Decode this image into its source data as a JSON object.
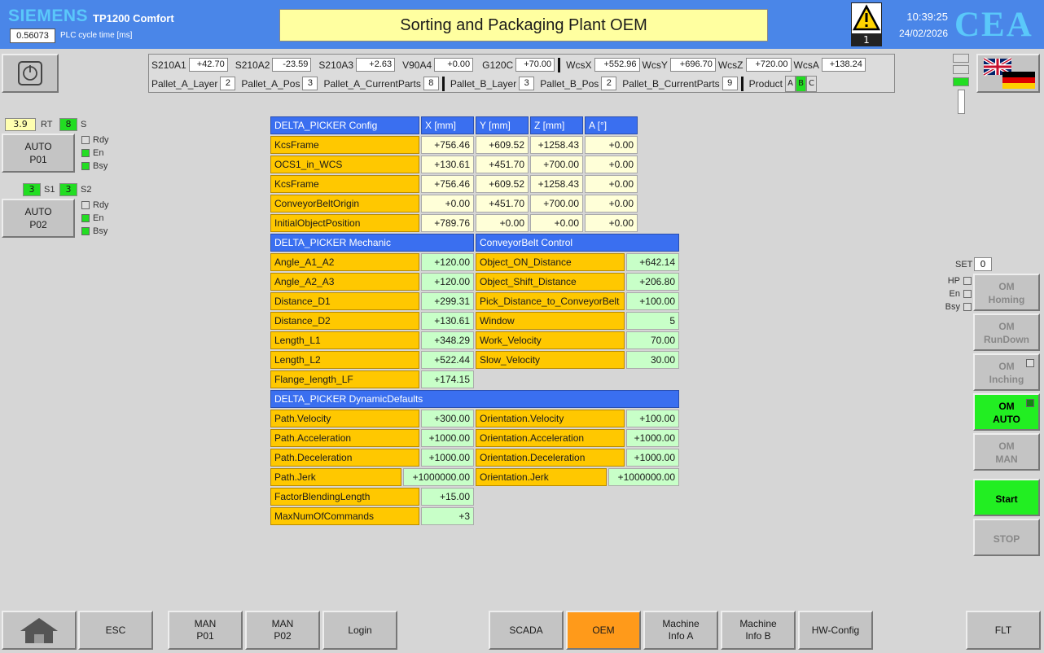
{
  "header": {
    "brand": "SIEMENS",
    "model": "TP1200 Comfort",
    "cycle_value": "0.56073",
    "cycle_label": "PLC cycle time [ms]",
    "title": "Sorting and Packaging Plant OEM",
    "alarm_count": "1",
    "time": "10:39:25",
    "date": "24/02/2026",
    "logo": "CEA"
  },
  "status_bar": {
    "row1": [
      {
        "label": "S210A1",
        "value": "+42.70"
      },
      {
        "label": "S210A2",
        "value": "-23.59"
      },
      {
        "label": "S210A3",
        "value": "+2.63"
      },
      {
        "label": "V90A4",
        "value": "+0.00"
      },
      {
        "label": "G120C",
        "value": "+70.00"
      },
      {
        "label": "WcsX",
        "value": "+552.96"
      },
      {
        "label": "WcsY",
        "value": "+696.70"
      },
      {
        "label": "WcsZ",
        "value": "+720.00"
      },
      {
        "label": "WcsA",
        "value": "+138.24"
      }
    ],
    "row2": [
      {
        "label": "Pallet_A_Layer",
        "value": "2"
      },
      {
        "label": "Pallet_A_Pos",
        "value": "3"
      },
      {
        "label": "Pallet_A_CurrentParts",
        "value": "8"
      },
      {
        "label": "Pallet_B_Layer",
        "value": "3"
      },
      {
        "label": "Pallet_B_Pos",
        "value": "2"
      },
      {
        "label": "Pallet_B_CurrentParts",
        "value": "9"
      }
    ],
    "product_label": "Product",
    "products": [
      "A",
      "B",
      "C"
    ],
    "active_product": "B"
  },
  "left_panel": {
    "rt_value": "3.9",
    "rt_label": "RT",
    "s_value": "8",
    "s_label": "S",
    "p01_label": "AUTO P01",
    "p01_line1": "AUTO",
    "p01_line2": "P01",
    "s1_value": "3",
    "s1_label": "S1",
    "s2_value": "3",
    "s2_label": "S2",
    "p02_line1": "AUTO",
    "p02_line2": "P02",
    "leds": {
      "rdy": "Rdy",
      "en": "En",
      "bsy": "Bsy"
    }
  },
  "config": {
    "header": "DELTA_PICKER Config",
    "cols": [
      "X [mm]",
      "Y [mm]",
      "Z [mm]",
      "A [°]"
    ],
    "rows": [
      {
        "name": "KcsFrame",
        "v": [
          "+756.46",
          "+609.52",
          "+1258.43",
          "+0.00"
        ]
      },
      {
        "name": "OCS1_in_WCS",
        "v": [
          "+130.61",
          "+451.70",
          "+700.00",
          "+0.00"
        ]
      },
      {
        "name": "KcsFrame",
        "v": [
          "+756.46",
          "+609.52",
          "+1258.43",
          "+0.00"
        ]
      },
      {
        "name": "ConveyorBeltOrigin",
        "v": [
          "+0.00",
          "+451.70",
          "+700.00",
          "+0.00"
        ]
      },
      {
        "name": "InitialObjectPosition",
        "v": [
          "+789.76",
          "+0.00",
          "+0.00",
          "+0.00"
        ]
      }
    ]
  },
  "mechanic": {
    "header": "DELTA_PICKER Mechanic",
    "rows": [
      {
        "name": "Angle_A1_A2",
        "v": "+120.00"
      },
      {
        "name": "Angle_A2_A3",
        "v": "+120.00"
      },
      {
        "name": "Distance_D1",
        "v": "+299.31"
      },
      {
        "name": "Distance_D2",
        "v": "+130.61"
      },
      {
        "name": "Length_L1",
        "v": "+348.29"
      },
      {
        "name": "Length_L2",
        "v": "+522.44"
      },
      {
        "name": "Flange_length_LF",
        "v": "+174.15"
      }
    ]
  },
  "conveyor": {
    "header": "ConveyorBelt Control",
    "rows": [
      {
        "name": "Object_ON_Distance",
        "v": "+642.14"
      },
      {
        "name": "Object_Shift_Distance",
        "v": "+206.80"
      },
      {
        "name": "Pick_Distance_to_ConveyorBelt",
        "v": "+100.00"
      },
      {
        "name": "Window",
        "v": "5"
      },
      {
        "name": "Work_Velocity",
        "v": "70.00"
      },
      {
        "name": "Slow_Velocity",
        "v": "30.00"
      }
    ]
  },
  "dynamic": {
    "header": "DELTA_PICKER DynamicDefaults",
    "left": [
      {
        "name": "Path.Velocity",
        "v": "+300.00"
      },
      {
        "name": "Path.Acceleration",
        "v": "+1000.00"
      },
      {
        "name": "Path.Deceleration",
        "v": "+1000.00"
      },
      {
        "name": "Path.Jerk",
        "v": "+1000000.00"
      },
      {
        "name": "FactorBlendingLength",
        "v": "+15.00"
      },
      {
        "name": "MaxNumOfCommands",
        "v": "+3"
      }
    ],
    "right": [
      {
        "name": "Orientation.Velocity",
        "v": "+100.00"
      },
      {
        "name": "Orientation.Acceleration",
        "v": "+1000.00"
      },
      {
        "name": "Orientation.Deceleration",
        "v": "+1000.00"
      },
      {
        "name": "Orientation.Jerk",
        "v": "+1000000.00"
      }
    ]
  },
  "right_panel": {
    "set_label": "SET",
    "set_value": "0",
    "leds": {
      "hp": "HP",
      "en": "En",
      "bsy": "Bsy"
    },
    "buttons": [
      {
        "l1": "OM",
        "l2": "Homing"
      },
      {
        "l1": "OM",
        "l2": "RunDown"
      },
      {
        "l1": "OM",
        "l2": "Inching"
      },
      {
        "l1": "OM",
        "l2": "AUTO"
      },
      {
        "l1": "OM",
        "l2": "MAN"
      }
    ],
    "start": "Start",
    "stop": "STOP"
  },
  "bottom": {
    "esc": "ESC",
    "man_p01": [
      "MAN",
      "P01"
    ],
    "man_p02": [
      "MAN",
      "P02"
    ],
    "login": "Login",
    "scada": "SCADA",
    "oem": "OEM",
    "info_a": [
      "Machine",
      "Info A"
    ],
    "info_b": [
      "Machine",
      "Info B"
    ],
    "hwconfig": "HW-Config",
    "flt": "FLT"
  },
  "colors": {
    "header_blue": "#4a86e8",
    "active_green": "#22ee22",
    "active_orange": "#ff9a1a",
    "label_amber": "#ffc800"
  }
}
